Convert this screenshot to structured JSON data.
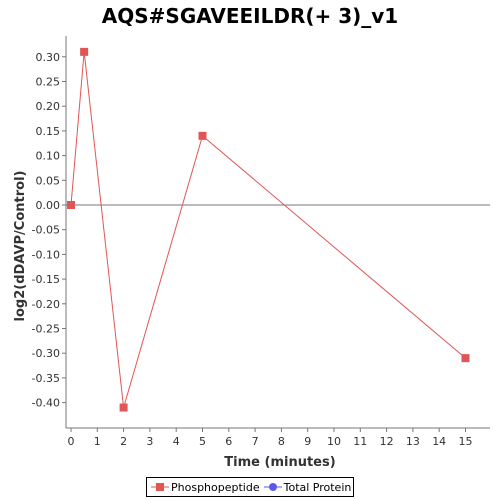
{
  "colors": {
    "phospho": "#e05555",
    "total": "#5a5ae6",
    "axis": "#777777",
    "zero_line": "#777777"
  },
  "chart_data": {
    "type": "line",
    "title": "AQS#SGAVEEILDR(+ 3)_v1",
    "xlabel": "Time (minutes)",
    "ylabel": "log2(dDAVP/Control)",
    "xlim": [
      0,
      16
    ],
    "ylim": [
      -0.45,
      0.33
    ],
    "xticks": [
      0,
      1,
      2,
      3,
      4,
      5,
      6,
      7,
      8,
      9,
      10,
      11,
      12,
      13,
      14,
      15
    ],
    "yticks": [
      0.3,
      0.25,
      0.2,
      0.15,
      0.1,
      0.05,
      0.0,
      -0.05,
      -0.1,
      -0.15,
      -0.2,
      -0.25,
      -0.3,
      -0.35,
      -0.4
    ],
    "ytick_labels": [
      "0.30",
      "0.25",
      "0.20",
      "0.15",
      "0.10",
      "0.05",
      "0.00",
      "-0.05",
      "-0.10",
      "-0.15",
      "-0.20",
      "-0.25",
      "-0.30",
      "-0.35",
      "-0.40"
    ],
    "series": [
      {
        "name": "Phosphopeptide",
        "marker": "square",
        "color": "#e05555",
        "x": [
          0,
          0.5,
          2,
          5,
          15
        ],
        "y": [
          0.0,
          0.31,
          -0.41,
          0.14,
          -0.31
        ]
      },
      {
        "name": "Total Protein",
        "marker": "circle",
        "color": "#5a5ae6",
        "x": [],
        "y": []
      }
    ],
    "legend_position": "bottom"
  }
}
